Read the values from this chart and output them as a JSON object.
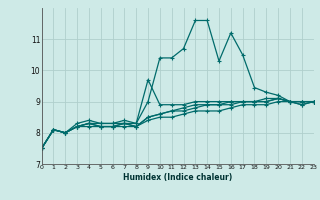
{
  "xlabel": "Humidex (Indice chaleur)",
  "bg_color": "#ceeae7",
  "grid_color": "#b0cfcc",
  "line_color": "#006b6b",
  "xmin": 0,
  "xmax": 23,
  "ymin": 7,
  "ymax": 12,
  "series": [
    [
      7.5,
      8.1,
      8.0,
      8.3,
      8.4,
      8.3,
      8.3,
      8.4,
      8.3,
      9.0,
      10.4,
      10.4,
      10.7,
      11.6,
      11.6,
      10.3,
      11.2,
      10.5,
      9.45,
      9.3,
      9.2,
      9.0,
      9.0,
      9.0
    ],
    [
      7.5,
      8.1,
      8.0,
      8.2,
      8.3,
      8.3,
      8.3,
      8.3,
      8.3,
      9.7,
      8.9,
      8.9,
      8.9,
      9.0,
      9.0,
      9.0,
      9.0,
      9.0,
      9.0,
      9.0,
      9.1,
      9.0,
      9.0,
      9.0
    ],
    [
      7.5,
      8.1,
      8.0,
      8.2,
      8.3,
      8.2,
      8.2,
      8.3,
      8.2,
      8.5,
      8.6,
      8.7,
      8.8,
      8.9,
      8.9,
      8.9,
      9.0,
      9.0,
      9.0,
      9.1,
      9.1,
      9.0,
      8.9,
      9.0
    ],
    [
      7.5,
      8.1,
      8.0,
      8.2,
      8.3,
      8.2,
      8.2,
      8.3,
      8.2,
      8.5,
      8.6,
      8.7,
      8.7,
      8.8,
      8.9,
      8.9,
      8.9,
      9.0,
      9.0,
      9.0,
      9.1,
      9.0,
      8.9,
      9.0
    ],
    [
      7.5,
      8.1,
      8.0,
      8.2,
      8.2,
      8.2,
      8.2,
      8.2,
      8.2,
      8.4,
      8.5,
      8.5,
      8.6,
      8.7,
      8.7,
      8.7,
      8.8,
      8.9,
      8.9,
      8.9,
      9.0,
      9.0,
      9.0,
      9.0
    ]
  ]
}
